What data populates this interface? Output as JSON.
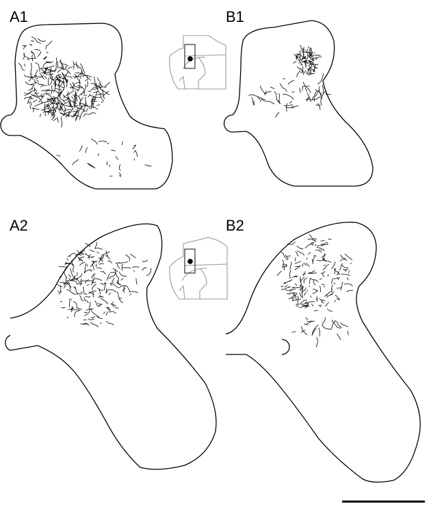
{
  "panels": [
    {
      "label": "A1"
    },
    {
      "label": "B1"
    },
    {
      "label": "A2"
    },
    {
      "label": "B2"
    }
  ]
}
